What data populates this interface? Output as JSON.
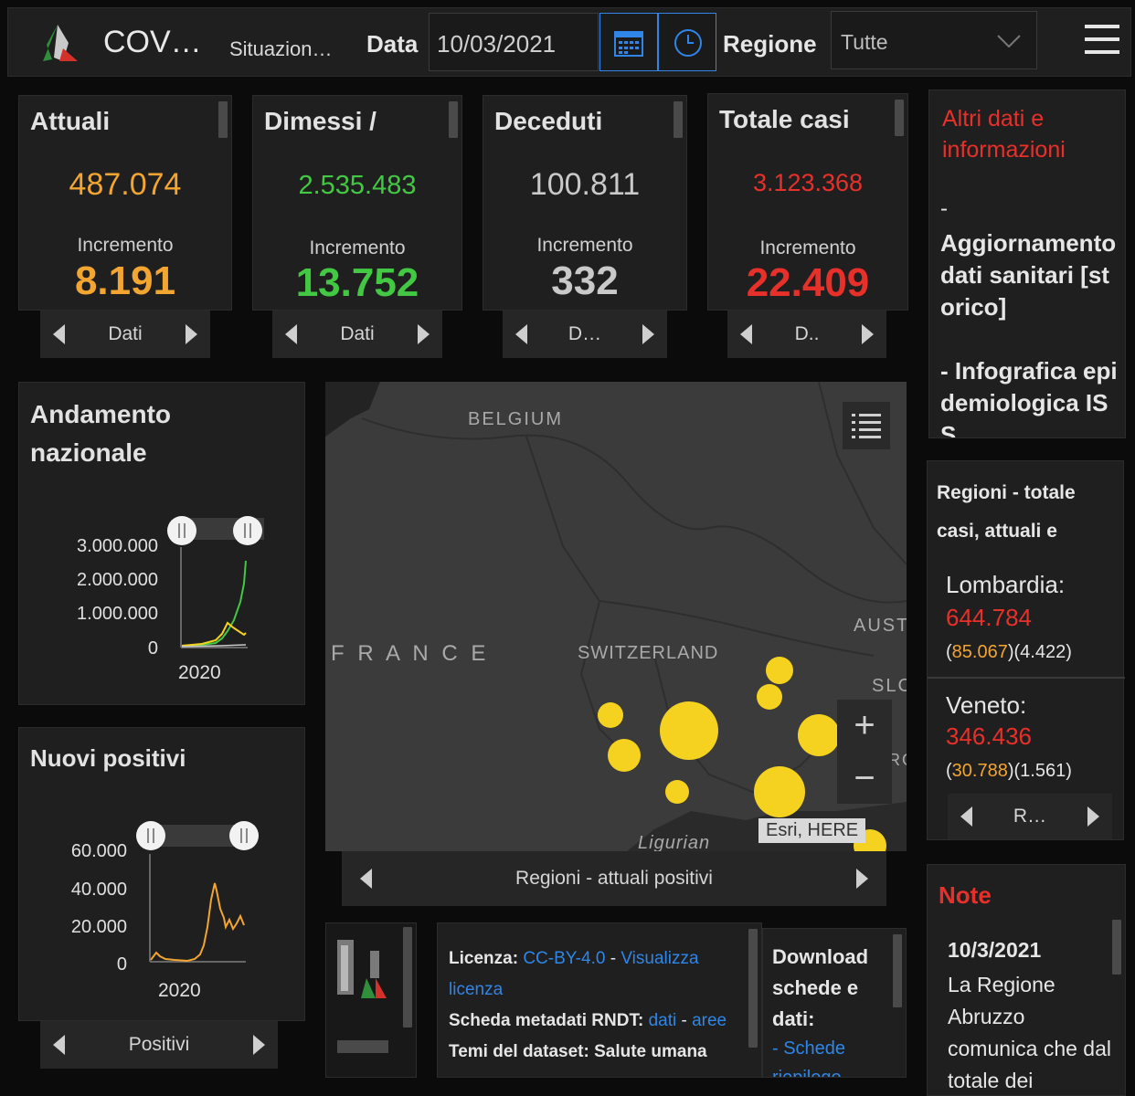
{
  "header": {
    "app_title": "COV…",
    "subtitle": "Situazion…",
    "date_label": "Data",
    "date_value": "10/03/2021",
    "region_label": "Regione",
    "region_value": "Tutte"
  },
  "kpis": [
    {
      "title": "Attuali",
      "value": "487.074",
      "inc_label": "Incremento",
      "increment": "8.191",
      "pager": "Dati",
      "color": "#f2a531"
    },
    {
      "title": "Dimessi /",
      "value": "2.535.483",
      "inc_label": "Incremento",
      "increment": "13.752",
      "pager": "Dati",
      "color": "#43c843"
    },
    {
      "title": "Deceduti",
      "value": "100.811",
      "inc_label": "Incremento",
      "increment": "332",
      "pager": "D…",
      "color": "#c9c9c9"
    },
    {
      "title": "Totale casi",
      "value": "3.123.368",
      "inc_label": "Incremento",
      "increment": "22.409",
      "pager": "D..",
      "color": "#e8302b"
    }
  ],
  "info": {
    "title": "Altri dati e informazioni",
    "item1_dash": "-",
    "item1": "Aggiornamento dati sanitari [storico]",
    "item2": "- Infografica epidemiologica ISS"
  },
  "andamento": {
    "title": "Andamento nazionale",
    "ticks": [
      "3.000.000",
      "2.000.000",
      "1.000.000",
      "0"
    ],
    "xlabel": "2020"
  },
  "nuovi": {
    "title": "Nuovi positivi",
    "ticks": [
      "60.000",
      "40.000",
      "20.000",
      "0"
    ],
    "xlabel": "2020",
    "pager": "Positivi"
  },
  "map": {
    "labels": {
      "belgium": "BELGIUM",
      "france": "F R A N C E",
      "switzerland": "SWITZERLAND",
      "austria": "AUST",
      "slo": "SLC",
      "ro": "RO",
      "ligurian": "Ligurian"
    },
    "attribution": "Esri, HERE",
    "pager": "Regioni - attuali positivi"
  },
  "regions": {
    "title": "Regioni - totale casi, attuali e",
    "items": [
      {
        "name": "Lombardia:",
        "total": "644.784",
        "attuali": "85.067",
        "deceduti": "4.422"
      },
      {
        "name": "Veneto:",
        "total": "346.436",
        "attuali": "30.788",
        "deceduti": "1.561"
      }
    ],
    "pager": "R…"
  },
  "license": {
    "lic_label": "Licenza:",
    "lic_value": "CC-BY-4.0",
    "sep": "-",
    "lic_link1": "Visualizza",
    "lic_link2": "licenza",
    "rndt_label": "Scheda metadati RNDT:",
    "rndt_link1": "dati",
    "rndt_sep": "-",
    "rndt_link2": "aree",
    "cut_text": "Temi del dataset: Salute umana"
  },
  "download": {
    "title": "Download schede e dati:",
    "link": "- Schede",
    "cut": "riepilogo"
  },
  "note": {
    "title": "Note",
    "date": "10/3/2021",
    "text": "La Regione Abruzzo comunica che dal totale dei"
  },
  "colors": {
    "orange": "#f2a531",
    "green": "#43c843",
    "red": "#e8302b",
    "blue": "#2f86e8",
    "yellow": "#f5d21f"
  }
}
